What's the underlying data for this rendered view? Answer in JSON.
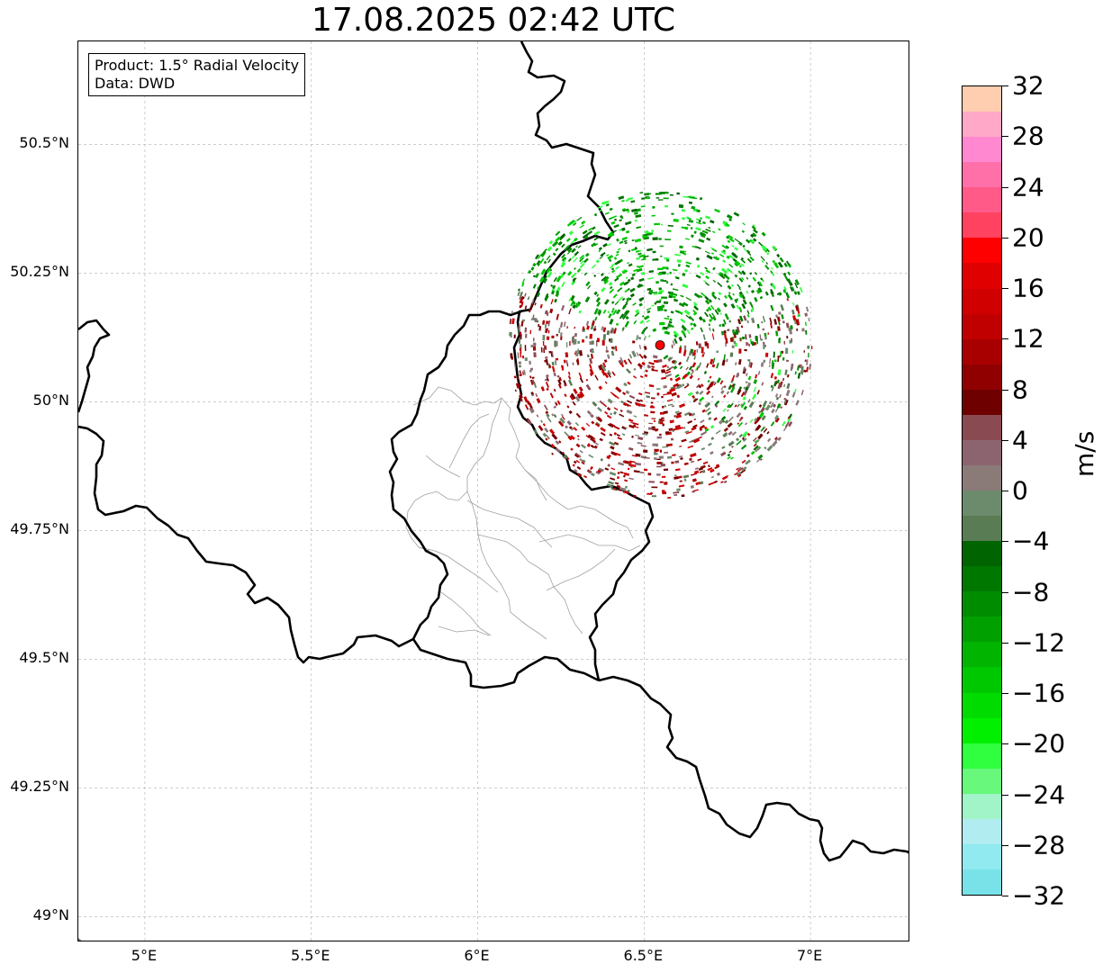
{
  "title": "17.08.2025 02:42 UTC",
  "info_box": {
    "product": "Product: 1.5° Radial Velocity",
    "data": "Data: DWD"
  },
  "map": {
    "lon_range": [
      4.8,
      7.3
    ],
    "lat_range": [
      48.95,
      50.7
    ],
    "lat_ticks": [
      {
        "value": 50.5,
        "label": "50.5°N"
      },
      {
        "value": 50.25,
        "label": "50.25°N"
      },
      {
        "value": 50.0,
        "label": "50°N"
      },
      {
        "value": 49.75,
        "label": "49.75°N"
      },
      {
        "value": 49.5,
        "label": "49.5°N"
      },
      {
        "value": 49.25,
        "label": "49.25°N"
      },
      {
        "value": 49.0,
        "label": "49°N"
      }
    ],
    "lon_ticks": [
      {
        "value": 5.0,
        "label": "5°E"
      },
      {
        "value": 5.5,
        "label": "5.5°E"
      },
      {
        "value": 6.0,
        "label": "6°E"
      },
      {
        "value": 6.5,
        "label": "6.5°E"
      },
      {
        "value": 7.0,
        "label": "7°E"
      }
    ],
    "radar_site": {
      "lon": 6.548,
      "lat": 50.11,
      "color": "#ff0000"
    },
    "radar_range_deg": {
      "lon": 0.46,
      "lat": 0.3
    },
    "grid_color": "#b0b0b0"
  },
  "colorbar": {
    "unit": "m/s",
    "min": -32,
    "max": 32,
    "ticks": [
      "32",
      "28",
      "24",
      "20",
      "16",
      "12",
      "8",
      "4",
      "0",
      "−4",
      "−8",
      "−12",
      "−16",
      "−20",
      "−24",
      "−28",
      "−32"
    ],
    "colors_top_to_bottom": [
      "#ffcdb0",
      "#ffa8c8",
      "#ff88d0",
      "#ff70a8",
      "#ff5a88",
      "#ff4260",
      "#ff0000",
      "#e00000",
      "#d00000",
      "#c00000",
      "#a80000",
      "#900000",
      "#6e0000",
      "#8a4a52",
      "#8c6470",
      "#8a7a78",
      "#6c8a6c",
      "#5a7c55",
      "#006400",
      "#007800",
      "#008c00",
      "#00a000",
      "#00b400",
      "#00c800",
      "#00dc00",
      "#00f000",
      "#30ff40",
      "#68f87c",
      "#a0f4c8",
      "#b0ecf0",
      "#90eaf0",
      "#78e2e8"
    ]
  }
}
